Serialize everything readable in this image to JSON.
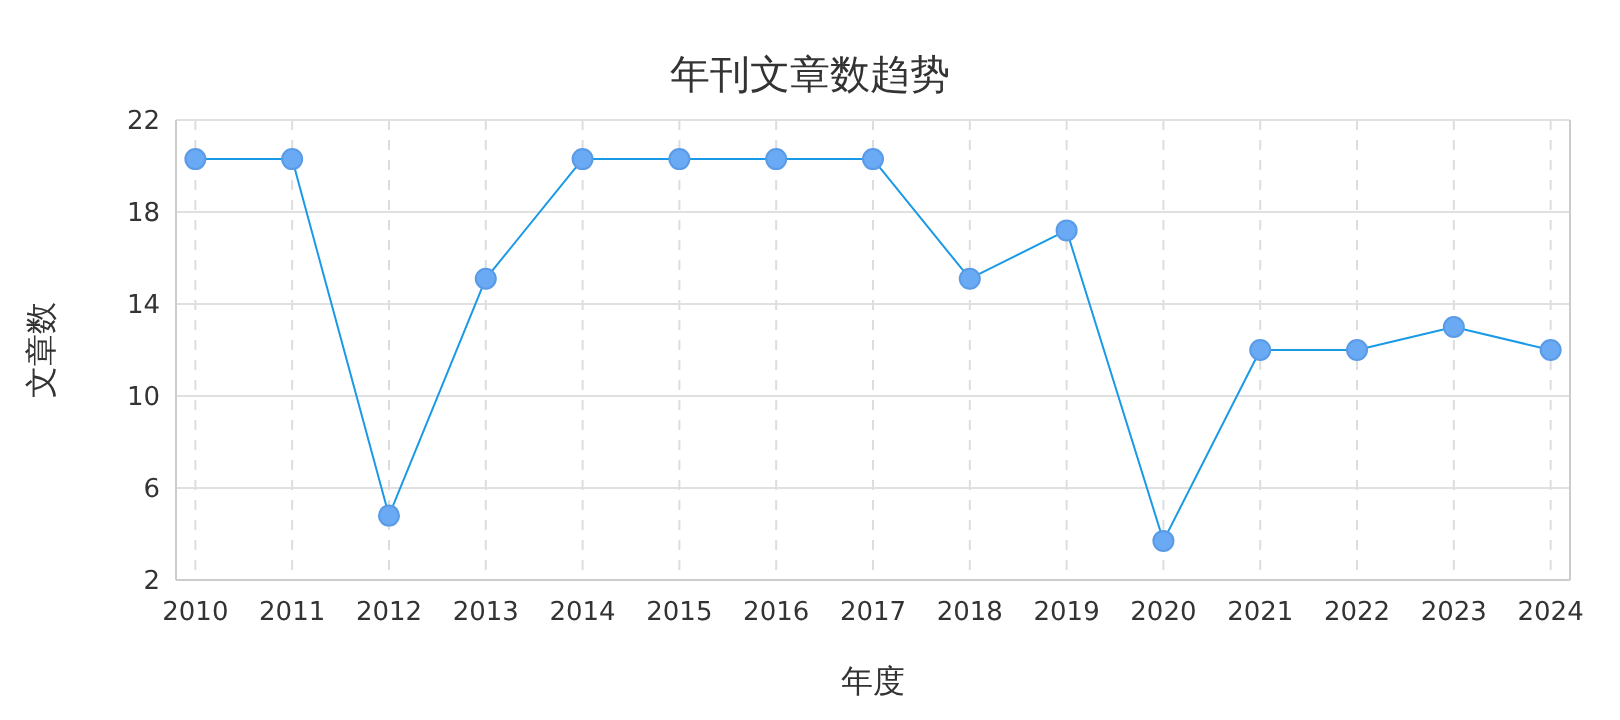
{
  "chart_data": {
    "type": "line",
    "title": "年刊文章数趋势",
    "xlabel": "年度",
    "ylabel": "文章数",
    "categories": [
      "2010",
      "2011",
      "2012",
      "2013",
      "2014",
      "2015",
      "2016",
      "2017",
      "2018",
      "2019",
      "2020",
      "2021",
      "2022",
      "2023",
      "2024"
    ],
    "series": [
      {
        "color": "#1a9ae6",
        "values": [
          20.3,
          20.3,
          4.8,
          15.1,
          20.3,
          20.3,
          20.3,
          20.3,
          15.1,
          17.2,
          3.7,
          12,
          12,
          13,
          12
        ]
      }
    ],
    "ylim": [
      2,
      22
    ],
    "yticks": [
      2,
      6,
      10,
      14,
      18,
      22
    ],
    "grid": true,
    "marker": "circle",
    "line_style": "solid"
  }
}
